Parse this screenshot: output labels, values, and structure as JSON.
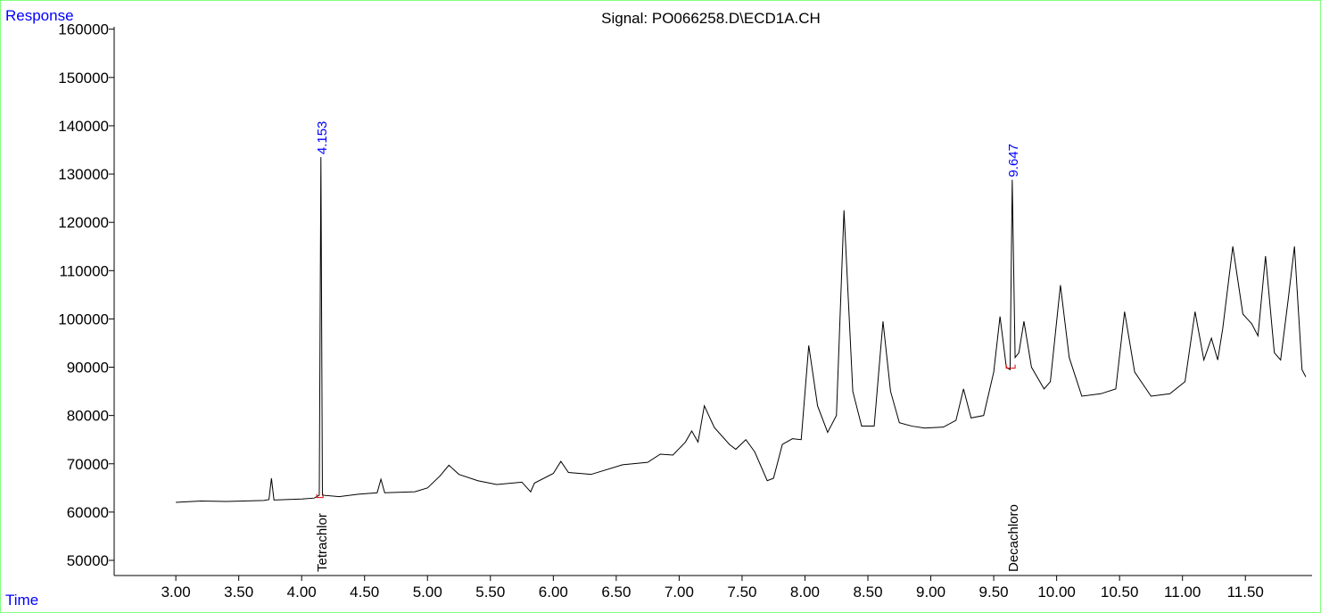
{
  "chart_data": {
    "type": "line",
    "title": "Signal: PO066258.D\\ECD1A.CH",
    "y_label": "Response",
    "x_label": "Time",
    "color": "#000000",
    "x": [
      3.0,
      3.2,
      3.4,
      3.7,
      3.74,
      3.76,
      3.78,
      4.0,
      4.1,
      4.14,
      4.153,
      4.165,
      4.3,
      4.45,
      4.6,
      4.63,
      4.66,
      4.9,
      5.0,
      5.1,
      5.17,
      5.25,
      5.4,
      5.55,
      5.75,
      5.82,
      5.85,
      6.0,
      6.06,
      6.12,
      6.3,
      6.55,
      6.75,
      6.85,
      6.95,
      7.05,
      7.1,
      7.15,
      7.2,
      7.28,
      7.4,
      7.45,
      7.53,
      7.6,
      7.7,
      7.75,
      7.82,
      7.9,
      7.97,
      8.03,
      8.1,
      8.18,
      8.25,
      8.31,
      8.38,
      8.45,
      8.55,
      8.62,
      8.68,
      8.75,
      8.85,
      8.95,
      9.1,
      9.2,
      9.26,
      9.32,
      9.42,
      9.5,
      9.55,
      9.6,
      9.63,
      9.647,
      9.67,
      9.7,
      9.74,
      9.8,
      9.9,
      9.95,
      10.03,
      10.1,
      10.2,
      10.35,
      10.47,
      10.54,
      10.62,
      10.75,
      10.9,
      11.02,
      11.1,
      11.17,
      11.23,
      11.28,
      11.32,
      11.4,
      11.48,
      11.55,
      11.6,
      11.66,
      11.73,
      11.78,
      11.84,
      11.89,
      11.95,
      11.98
    ],
    "values": [
      62000,
      62300,
      62200,
      62400,
      62600,
      67000,
      62500,
      62700,
      62900,
      63500,
      133500,
      63500,
      63200,
      63700,
      64000,
      66800,
      64000,
      64200,
      65000,
      67500,
      69700,
      67800,
      66500,
      65700,
      66200,
      64200,
      66000,
      68000,
      70500,
      68200,
      67800,
      69800,
      70300,
      72000,
      71800,
      74500,
      76800,
      74500,
      82000,
      77500,
      74000,
      73000,
      75000,
      72500,
      66500,
      67000,
      74000,
      75200,
      75000,
      94500,
      82000,
      76500,
      80000,
      122500,
      85000,
      77800,
      77800,
      99500,
      85000,
      78500,
      77800,
      77400,
      77600,
      79000,
      85500,
      79500,
      80000,
      89000,
      100500,
      90000,
      89500,
      128800,
      92000,
      93000,
      99500,
      90000,
      85500,
      87000,
      107000,
      92000,
      84000,
      84500,
      85500,
      101500,
      89000,
      84000,
      84500,
      87000,
      101500,
      91500,
      96000,
      91500,
      98000,
      115000,
      101000,
      99000,
      96500,
      113000,
      93000,
      91500,
      104000,
      115000,
      89500,
      88000
    ],
    "xlim": [
      2.51,
      12.03
    ],
    "ylim": [
      46860,
      160500
    ],
    "xticks": [
      {
        "value": 3.0,
        "label": "3.00"
      },
      {
        "value": 3.5,
        "label": "3.50"
      },
      {
        "value": 4.0,
        "label": "4.00"
      },
      {
        "value": 4.5,
        "label": "4.50"
      },
      {
        "value": 5.0,
        "label": "5.00"
      },
      {
        "value": 5.5,
        "label": "5.50"
      },
      {
        "value": 6.0,
        "label": "6.00"
      },
      {
        "value": 6.5,
        "label": "6.50"
      },
      {
        "value": 7.0,
        "label": "7.00"
      },
      {
        "value": 7.5,
        "label": "7.50"
      },
      {
        "value": 8.0,
        "label": "8.00"
      },
      {
        "value": 8.5,
        "label": "8.50"
      },
      {
        "value": 9.0,
        "label": "9.00"
      },
      {
        "value": 9.5,
        "label": "9.50"
      },
      {
        "value": 10.0,
        "label": "10.00"
      },
      {
        "value": 10.5,
        "label": "10.50"
      },
      {
        "value": 11.0,
        "label": "11.00"
      },
      {
        "value": 11.5,
        "label": "11.50"
      }
    ],
    "yticks": [
      50000,
      60000,
      70000,
      80000,
      90000,
      100000,
      110000,
      120000,
      130000,
      140000,
      150000,
      160000
    ],
    "annotations": [
      {
        "x": 4.153,
        "y": 133500,
        "compound": "Tetrachlor"
      },
      {
        "x": 9.647,
        "y": 128800,
        "compound": "Decachloro"
      }
    ],
    "baselines": [
      {
        "start": 4.12,
        "end": 4.17,
        "y": 63000
      },
      {
        "start": 9.6,
        "end": 9.67,
        "y": 89800
      }
    ],
    "baseline_color": "#e00000",
    "annotation_color": "#0000ff"
  }
}
